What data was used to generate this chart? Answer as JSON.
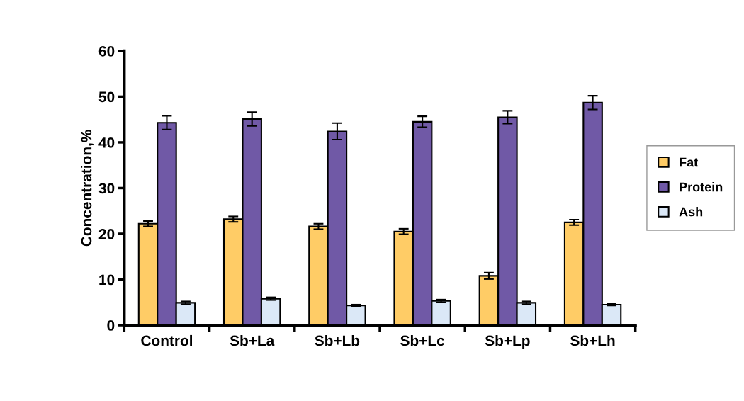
{
  "chart_data": {
    "type": "bar",
    "ylabel": "Concentration,%",
    "categories": [
      "Control",
      "Sb+La",
      "Sb+Lb",
      "Sb+Lc",
      "Sb+Lp",
      "Sb+Lh"
    ],
    "series": [
      {
        "name": "Fat",
        "color": "#ffcc66",
        "values": [
          22.2,
          23.2,
          21.6,
          20.5,
          10.8,
          22.5
        ],
        "errors": [
          0.6,
          0.6,
          0.6,
          0.6,
          0.7,
          0.6
        ]
      },
      {
        "name": "Protein",
        "color": "#7059a6",
        "values": [
          44.3,
          45.1,
          42.4,
          44.5,
          45.5,
          48.7
        ],
        "errors": [
          1.5,
          1.5,
          1.8,
          1.2,
          1.4,
          1.5
        ]
      },
      {
        "name": "Ash",
        "color": "#dbe8f7",
        "values": [
          4.9,
          5.8,
          4.3,
          5.3,
          4.9,
          4.5
        ],
        "errors": [
          0.3,
          0.3,
          0.2,
          0.3,
          0.3,
          0.2
        ]
      }
    ],
    "ylim": [
      0,
      60
    ],
    "yticks": [
      0,
      10,
      20,
      30,
      40,
      50,
      60
    ],
    "grid": false,
    "legend": "right"
  }
}
